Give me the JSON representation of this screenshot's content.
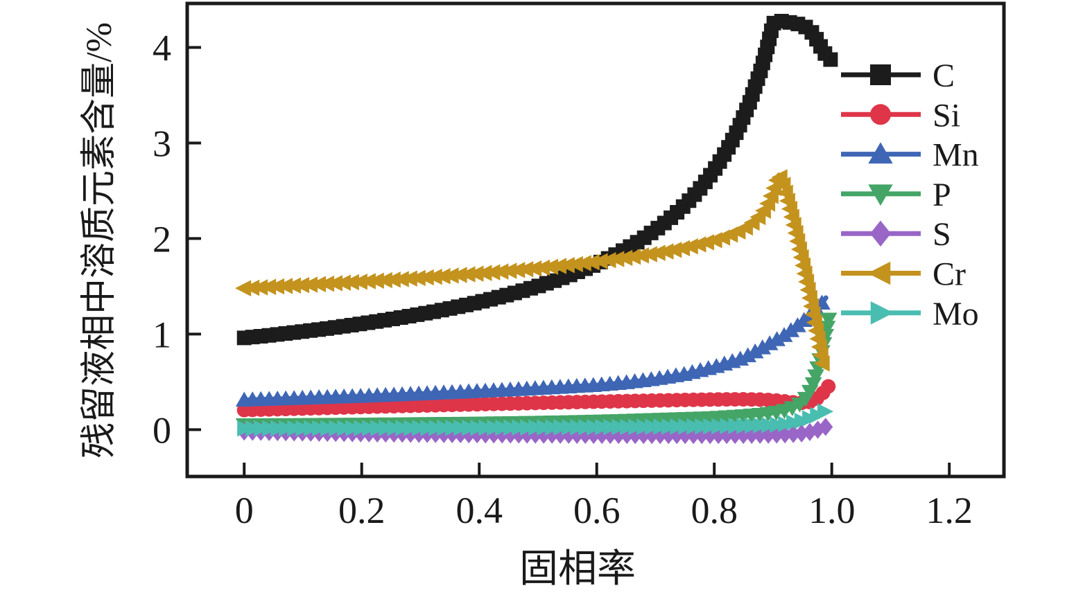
{
  "figure": {
    "background": "#ffffff",
    "axis_color": "#1a1a1a"
  },
  "chart_data": {
    "type": "line",
    "title": "",
    "xlabel": "固相率",
    "ylabel": "残留液相中溶质元素含量/%",
    "xlim": [
      -0.097,
      1.293
    ],
    "ylim": [
      -0.49,
      4.46
    ],
    "x_tick_labels": [
      "0",
      "0.2",
      "0.4",
      "0.6",
      "0.8",
      "1.0",
      "1.2"
    ],
    "x_tick_values": [
      0,
      0.2,
      0.4,
      0.6,
      0.8,
      1.0,
      1.2
    ],
    "y_tick_labels": [
      "0",
      "1",
      "2",
      "3",
      "4"
    ],
    "y_tick_values": [
      0,
      1,
      2,
      3,
      4
    ],
    "grid": false,
    "legend": {
      "position": "upper-right-inside",
      "entries": [
        "C",
        "Si",
        "Mn",
        "P",
        "S",
        "Cr",
        "Mo"
      ]
    },
    "series": [
      {
        "name": "C",
        "color": "#1c1c1c",
        "marker": "square",
        "points": [
          [
            0,
            0.96
          ],
          [
            0.025,
            0.976
          ],
          [
            0.05,
            0.992
          ],
          [
            0.075,
            1.01
          ],
          [
            0.1,
            1.028
          ],
          [
            0.125,
            1.046
          ],
          [
            0.15,
            1.066
          ],
          [
            0.175,
            1.087
          ],
          [
            0.2,
            1.109
          ],
          [
            0.225,
            1.132
          ],
          [
            0.25,
            1.156
          ],
          [
            0.275,
            1.182
          ],
          [
            0.3,
            1.209
          ],
          [
            0.325,
            1.237
          ],
          [
            0.35,
            1.268
          ],
          [
            0.375,
            1.301
          ],
          [
            0.4,
            1.335
          ],
          [
            0.425,
            1.373
          ],
          [
            0.45,
            1.413
          ],
          [
            0.475,
            1.456
          ],
          [
            0.5,
            1.502
          ],
          [
            0.525,
            1.553
          ],
          [
            0.55,
            1.608
          ],
          [
            0.575,
            1.669
          ],
          [
            0.6,
            1.734
          ],
          [
            0.625,
            1.809
          ],
          [
            0.65,
            1.891
          ],
          [
            0.675,
            1.984
          ],
          [
            0.7,
            2.09
          ],
          [
            0.72,
            2.185
          ],
          [
            0.74,
            2.292
          ],
          [
            0.76,
            2.414
          ],
          [
            0.78,
            2.553
          ],
          [
            0.8,
            2.717
          ],
          [
            0.82,
            2.907
          ],
          [
            0.84,
            3.136
          ],
          [
            0.86,
            3.419
          ],
          [
            0.88,
            3.777
          ],
          [
            0.89,
            3.996
          ],
          [
            0.9,
            4.25
          ],
          [
            0.91,
            4.28
          ],
          [
            0.92,
            4.27
          ],
          [
            0.93,
            4.26
          ],
          [
            0.94,
            4.25
          ],
          [
            0.95,
            4.23
          ],
          [
            0.96,
            4.2
          ],
          [
            0.97,
            4.13
          ],
          [
            0.98,
            4.02
          ],
          [
            0.99,
            3.92
          ],
          [
            1.0,
            3.86
          ]
        ]
      },
      {
        "name": "Si",
        "color": "#df3549",
        "marker": "circle",
        "points": [
          [
            0,
            0.205
          ],
          [
            0.05,
            0.213
          ],
          [
            0.1,
            0.221
          ],
          [
            0.15,
            0.229
          ],
          [
            0.2,
            0.237
          ],
          [
            0.25,
            0.245
          ],
          [
            0.3,
            0.252
          ],
          [
            0.35,
            0.259
          ],
          [
            0.4,
            0.266
          ],
          [
            0.45,
            0.273
          ],
          [
            0.5,
            0.28
          ],
          [
            0.55,
            0.287
          ],
          [
            0.6,
            0.293
          ],
          [
            0.65,
            0.299
          ],
          [
            0.7,
            0.305
          ],
          [
            0.75,
            0.311
          ],
          [
            0.8,
            0.316
          ],
          [
            0.85,
            0.318
          ],
          [
            0.88,
            0.315
          ],
          [
            0.9,
            0.308
          ],
          [
            0.92,
            0.296
          ],
          [
            0.94,
            0.283
          ],
          [
            0.95,
            0.28
          ],
          [
            0.96,
            0.285
          ],
          [
            0.97,
            0.305
          ],
          [
            0.98,
            0.35
          ],
          [
            0.99,
            0.42
          ],
          [
            0.995,
            0.46
          ]
        ]
      },
      {
        "name": "Mn",
        "color": "#3f66b5",
        "marker": "triangle-up",
        "points": [
          [
            0,
            0.31
          ],
          [
            0.05,
            0.32
          ],
          [
            0.1,
            0.33
          ],
          [
            0.15,
            0.34
          ],
          [
            0.2,
            0.35
          ],
          [
            0.25,
            0.362
          ],
          [
            0.3,
            0.375
          ],
          [
            0.35,
            0.388
          ],
          [
            0.4,
            0.402
          ],
          [
            0.45,
            0.416
          ],
          [
            0.5,
            0.432
          ],
          [
            0.55,
            0.448
          ],
          [
            0.6,
            0.465
          ],
          [
            0.65,
            0.492
          ],
          [
            0.7,
            0.53
          ],
          [
            0.75,
            0.58
          ],
          [
            0.8,
            0.655
          ],
          [
            0.85,
            0.75
          ],
          [
            0.88,
            0.85
          ],
          [
            0.9,
            0.92
          ],
          [
            0.92,
            0.99
          ],
          [
            0.94,
            1.08
          ],
          [
            0.96,
            1.18
          ],
          [
            0.98,
            1.3
          ],
          [
            0.99,
            1.38
          ]
        ]
      },
      {
        "name": "P",
        "color": "#44a567",
        "marker": "triangle-down",
        "points": [
          [
            0,
            0.05
          ],
          [
            0.1,
            0.053
          ],
          [
            0.2,
            0.057
          ],
          [
            0.3,
            0.062
          ],
          [
            0.4,
            0.068
          ],
          [
            0.5,
            0.076
          ],
          [
            0.6,
            0.088
          ],
          [
            0.65,
            0.096
          ],
          [
            0.7,
            0.106
          ],
          [
            0.75,
            0.115
          ],
          [
            0.8,
            0.125
          ],
          [
            0.85,
            0.145
          ],
          [
            0.88,
            0.16
          ],
          [
            0.9,
            0.175
          ],
          [
            0.92,
            0.2
          ],
          [
            0.94,
            0.245
          ],
          [
            0.95,
            0.285
          ],
          [
            0.96,
            0.36
          ],
          [
            0.97,
            0.5
          ],
          [
            0.98,
            0.73
          ],
          [
            0.99,
            1.0
          ],
          [
            0.995,
            1.17
          ]
        ]
      },
      {
        "name": "S",
        "color": "#9966c7",
        "marker": "diamond",
        "points": [
          [
            0,
            -0.02
          ],
          [
            0.1,
            -0.03
          ],
          [
            0.2,
            -0.038
          ],
          [
            0.3,
            -0.044
          ],
          [
            0.4,
            -0.049
          ],
          [
            0.5,
            -0.052
          ],
          [
            0.6,
            -0.055
          ],
          [
            0.7,
            -0.056
          ],
          [
            0.8,
            -0.056
          ],
          [
            0.85,
            -0.055
          ],
          [
            0.9,
            -0.052
          ],
          [
            0.93,
            -0.047
          ],
          [
            0.95,
            -0.038
          ],
          [
            0.96,
            -0.028
          ],
          [
            0.97,
            -0.013
          ],
          [
            0.98,
            0.006
          ],
          [
            0.99,
            0.03
          ]
        ]
      },
      {
        "name": "Cr",
        "color": "#c3931e",
        "marker": "triangle-left",
        "points": [
          [
            0,
            1.48
          ],
          [
            0.05,
            1.497
          ],
          [
            0.1,
            1.513
          ],
          [
            0.15,
            1.531
          ],
          [
            0.2,
            1.549
          ],
          [
            0.25,
            1.568
          ],
          [
            0.3,
            1.589
          ],
          [
            0.35,
            1.611
          ],
          [
            0.4,
            1.635
          ],
          [
            0.45,
            1.661
          ],
          [
            0.5,
            1.69
          ],
          [
            0.55,
            1.722
          ],
          [
            0.6,
            1.757
          ],
          [
            0.65,
            1.798
          ],
          [
            0.7,
            1.845
          ],
          [
            0.72,
            1.866
          ],
          [
            0.74,
            1.89
          ],
          [
            0.76,
            1.917
          ],
          [
            0.78,
            1.947
          ],
          [
            0.8,
            1.98
          ],
          [
            0.82,
            2.02
          ],
          [
            0.84,
            2.07
          ],
          [
            0.86,
            2.135
          ],
          [
            0.88,
            2.25
          ],
          [
            0.89,
            2.34
          ],
          [
            0.9,
            2.48
          ],
          [
            0.905,
            2.57
          ],
          [
            0.91,
            2.665
          ],
          [
            0.915,
            2.62
          ],
          [
            0.92,
            2.53
          ],
          [
            0.93,
            2.3
          ],
          [
            0.94,
            2.05
          ],
          [
            0.95,
            1.78
          ],
          [
            0.96,
            1.49
          ],
          [
            0.97,
            1.18
          ],
          [
            0.98,
            0.87
          ],
          [
            0.985,
            0.68
          ]
        ]
      },
      {
        "name": "Mo",
        "color": "#4abdb1",
        "marker": "triangle-right",
        "points": [
          [
            0,
            0.012
          ],
          [
            0.1,
            0.014
          ],
          [
            0.2,
            0.016
          ],
          [
            0.3,
            0.018
          ],
          [
            0.4,
            0.02
          ],
          [
            0.5,
            0.023
          ],
          [
            0.6,
            0.026
          ],
          [
            0.7,
            0.03
          ],
          [
            0.8,
            0.035
          ],
          [
            0.85,
            0.04
          ],
          [
            0.9,
            0.05
          ],
          [
            0.92,
            0.06
          ],
          [
            0.94,
            0.08
          ],
          [
            0.95,
            0.095
          ],
          [
            0.96,
            0.115
          ],
          [
            0.97,
            0.14
          ],
          [
            0.98,
            0.165
          ],
          [
            0.99,
            0.2
          ]
        ]
      }
    ]
  }
}
